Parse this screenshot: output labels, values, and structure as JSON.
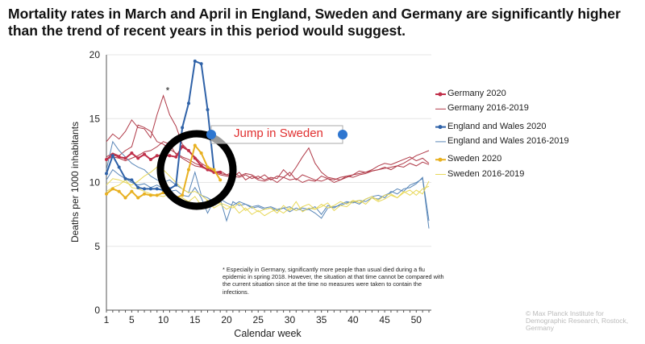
{
  "title": "Mortality rates in March and April in England, Sweden and Germany are significantly higher than the trend of recent years in this period would suggest.",
  "annotation": "Jump in Sweden",
  "footnote": "* Especially in Germany, significantly more people than usual died during a flu epidemic in spring 2018. However, the situation at that time cannot be compared with the current situation since at the time no measures were taken to contain the infections.",
  "copyright": "© Max Planck Institute for Demographic Research, Rostock, Germany",
  "chart_data": {
    "type": "line",
    "title": "",
    "xlabel": "Calendar week",
    "ylabel": "Deaths per 1000 inhabitants",
    "xlim": [
      1,
      52
    ],
    "ylim": [
      0,
      20
    ],
    "xticks": [
      1,
      5,
      10,
      15,
      20,
      25,
      30,
      35,
      40,
      45,
      50
    ],
    "yticks": [
      0,
      5,
      10,
      15,
      20
    ],
    "asterisk": {
      "label": "*",
      "x": 10,
      "y": 16.8
    },
    "series": [
      {
        "name": "Germany 2016-2019",
        "color": "#b03a48",
        "marker": false,
        "lines": [
          [
            13.2,
            13.8,
            13.4,
            14.0,
            14.9,
            14.3,
            14.2,
            13.5,
            15.3,
            16.8,
            15.3,
            14.4,
            13.0,
            12.5,
            12.0,
            11.5,
            11.2,
            10.8,
            10.6,
            10.5,
            10.4,
            10.8,
            10.2,
            10.5,
            10.2,
            10.1,
            10.3,
            10.0,
            10.4,
            10.2,
            10.3,
            10.0,
            10.2,
            10.1,
            10.5,
            10.3,
            10.2,
            10.4,
            10.5,
            10.6,
            10.7,
            10.8,
            10.9,
            11.0,
            11.1,
            11.2,
            11.3,
            11.5,
            11.8,
            12.1,
            12.3,
            12.5
          ],
          [
            12.0,
            12.3,
            12.1,
            12.5,
            12.8,
            14.5,
            14.3,
            14.0,
            13.2,
            13.0,
            12.6,
            12.3,
            12.0,
            11.8,
            11.5,
            11.3,
            11.0,
            10.9,
            10.7,
            10.6,
            10.5,
            10.4,
            10.6,
            10.3,
            10.5,
            10.2,
            10.4,
            10.3,
            11.0,
            10.5,
            11.2,
            12.0,
            12.7,
            11.5,
            10.8,
            10.4,
            10.3,
            10.2,
            10.4,
            10.6,
            10.9,
            10.8,
            11.0,
            11.3,
            11.5,
            11.4,
            11.6,
            11.8,
            12.0,
            11.7,
            11.9,
            11.5
          ],
          [
            11.8,
            12.0,
            11.9,
            11.7,
            11.9,
            12.1,
            12.4,
            12.5,
            12.8,
            13.2,
            13.0,
            12.2,
            11.9,
            11.6,
            11.3,
            11.2,
            11.0,
            10.8,
            10.9,
            10.6,
            10.8,
            10.5,
            10.7,
            10.6,
            10.3,
            10.6,
            10.2,
            10.5,
            10.4,
            10.8,
            10.2,
            10.6,
            10.4,
            10.2,
            10.1,
            10.3,
            10.0,
            10.2,
            10.5,
            10.4,
            10.6,
            10.7,
            10.9,
            11.0,
            11.2,
            11.0,
            11.3,
            11.2,
            11.5,
            11.3,
            11.6,
            11.4
          ]
        ]
      },
      {
        "name": "England and Wales 2016-2019",
        "color": "#5a87b8",
        "marker": false,
        "lines": [
          [
            11.0,
            13.2,
            12.5,
            12.0,
            11.5,
            11.2,
            11.0,
            10.5,
            10.2,
            10.0,
            10.2,
            9.8,
            9.5,
            9.2,
            10.8,
            9.0,
            8.8,
            8.5,
            8.7,
            8.4,
            8.2,
            8.5,
            8.3,
            8.1,
            8.2,
            8.0,
            8.1,
            7.9,
            8.0,
            8.1,
            7.8,
            8.0,
            7.9,
            8.1,
            7.5,
            8.2,
            8.0,
            8.3,
            8.5,
            8.4,
            8.6,
            8.5,
            8.8,
            8.7,
            9.0,
            9.2,
            9.5,
            9.3,
            9.8,
            10.0,
            10.3,
            6.4
          ],
          [
            10.2,
            11.0,
            10.6,
            10.3,
            10.0,
            9.8,
            9.9,
            9.6,
            9.8,
            9.5,
            9.3,
            9.4,
            9.0,
            8.9,
            9.6,
            8.8,
            7.6,
            8.6,
            8.7,
            7.0,
            8.5,
            8.2,
            8.3,
            8.0,
            8.1,
            7.9,
            8.0,
            7.8,
            8.0,
            7.7,
            8.0,
            7.8,
            7.9,
            7.6,
            7.2,
            8.0,
            8.1,
            8.2,
            8.4,
            8.5,
            8.3,
            8.7,
            8.9,
            9.0,
            8.8,
            9.3,
            9.1,
            9.5,
            9.6,
            9.9,
            10.4,
            7.0
          ]
        ]
      },
      {
        "name": "Sweden 2016-2019",
        "color": "#e8d85a",
        "marker": false,
        "lines": [
          [
            9.8,
            10.3,
            10.2,
            10.0,
            9.8,
            10.1,
            10.5,
            10.8,
            11.2,
            11.0,
            10.5,
            10.0,
            9.5,
            9.2,
            9.3,
            9.0,
            8.6,
            8.3,
            8.4,
            8.2,
            8.0,
            8.4,
            7.8,
            8.1,
            7.7,
            7.9,
            8.0,
            7.6,
            8.2,
            7.8,
            8.5,
            7.7,
            8.0,
            7.9,
            8.3,
            8.0,
            8.2,
            8.5,
            8.3,
            8.6,
            8.4,
            8.7,
            8.9,
            8.6,
            9.0,
            9.1,
            8.8,
            9.2,
            9.4,
            9.0,
            9.5,
            9.7
          ],
          [
            9.3,
            9.6,
            9.8,
            10.2,
            9.6,
            9.5,
            9.3,
            9.1,
            9.0,
            8.9,
            9.1,
            8.7,
            8.8,
            8.5,
            8.9,
            8.2,
            8.6,
            8.0,
            8.3,
            7.9,
            8.2,
            7.6,
            8.0,
            7.5,
            7.8,
            7.4,
            7.7,
            7.9,
            7.6,
            8.0,
            7.8,
            8.1,
            8.3,
            7.9,
            8.1,
            8.4,
            7.8,
            8.2,
            8.1,
            8.5,
            8.6,
            8.3,
            8.8,
            8.5,
            8.7,
            9.0,
            8.8,
            9.3,
            9.0,
            9.4,
            9.1,
            10.1
          ]
        ]
      },
      {
        "name": "Germany 2020",
        "color": "#c0304a",
        "marker": true,
        "lines": [
          [
            11.8,
            12.2,
            12.0,
            11.9,
            12.3,
            11.9,
            12.2,
            11.8,
            12.1,
            12.1,
            12.1,
            12.0,
            12.8,
            12.5,
            11.9,
            11.3,
            11.0,
            10.8,
            10.8
          ]
        ]
      },
      {
        "name": "England and Wales 2020",
        "color": "#2f62a8",
        "marker": true,
        "lines": [
          [
            10.7,
            12.1,
            11.2,
            10.3,
            10.2,
            9.6,
            9.5,
            9.5,
            9.5,
            9.4,
            9.5,
            9.8,
            14.3,
            16.2,
            19.5,
            19.3,
            15.7,
            11.0
          ]
        ]
      },
      {
        "name": "Sweden 2020",
        "color": "#e8b020",
        "marker": true,
        "lines": [
          [
            9.1,
            9.5,
            9.3,
            8.8,
            9.3,
            8.8,
            9.1,
            9.0,
            9.0,
            9.2,
            9.0,
            8.8,
            9.0,
            11.0,
            12.9,
            12.3,
            11.2,
            11.0,
            10.2
          ]
        ]
      }
    ],
    "legend": [
      "Germany 2020",
      "Germany 2016-2019",
      "England and Wales 2020",
      "England and Wales 2016-2019",
      "Sweden 2020",
      "Sweden 2016-2019"
    ]
  }
}
